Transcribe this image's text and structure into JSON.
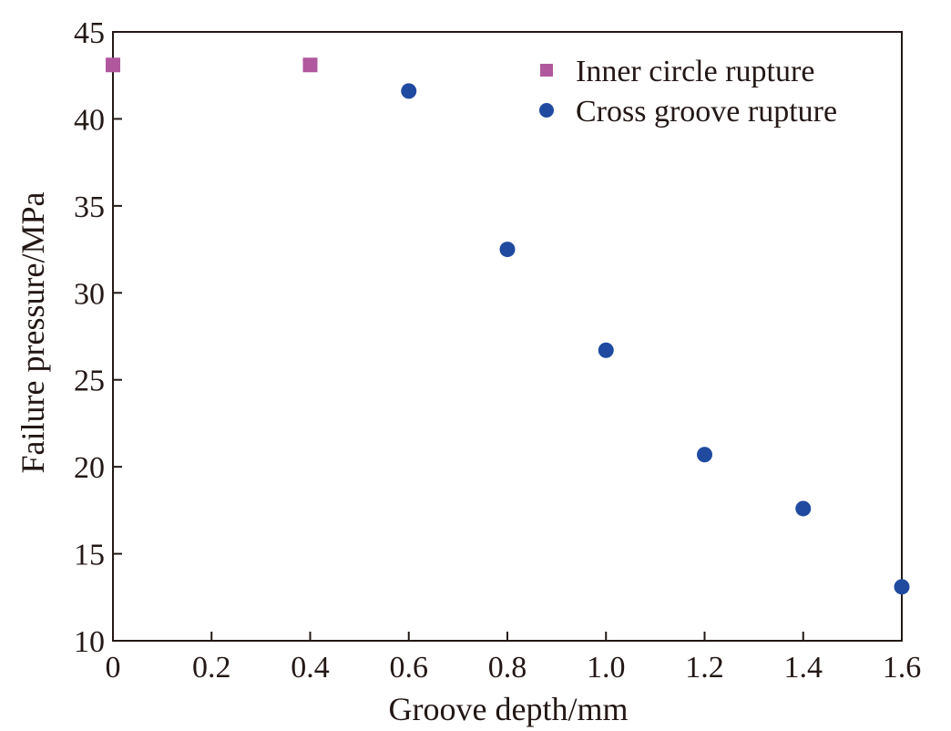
{
  "chart_data": {
    "type": "scatter",
    "title": "",
    "xlabel": "Groove depth/mm",
    "ylabel": "Failure pressure/MPa",
    "xlim": [
      0,
      1.6
    ],
    "ylim": [
      10,
      45
    ],
    "xticks": [
      "0",
      "0.2",
      "0.4",
      "0.6",
      "0.8",
      "1.0",
      "1.2",
      "1.4",
      "1.6"
    ],
    "xtick_values": [
      0,
      0.2,
      0.4,
      0.6,
      0.8,
      1.0,
      1.2,
      1.4,
      1.6
    ],
    "yticks": [
      "10",
      "15",
      "20",
      "25",
      "30",
      "35",
      "40",
      "45"
    ],
    "ytick_values": [
      10,
      15,
      20,
      25,
      30,
      35,
      40,
      45
    ],
    "grid": false,
    "legend_position": "top-right",
    "series": [
      {
        "name": "Inner circle rupture",
        "marker": "square",
        "color": "#b0589e",
        "x": [
          0,
          0.4
        ],
        "y": [
          43.1,
          43.1
        ]
      },
      {
        "name": "Cross groove rupture",
        "marker": "circle",
        "color": "#1f4aa0",
        "x": [
          0.6,
          0.8,
          1.0,
          1.2,
          1.4,
          1.6
        ],
        "y": [
          41.6,
          32.5,
          26.7,
          20.7,
          17.6,
          13.1
        ]
      }
    ]
  }
}
